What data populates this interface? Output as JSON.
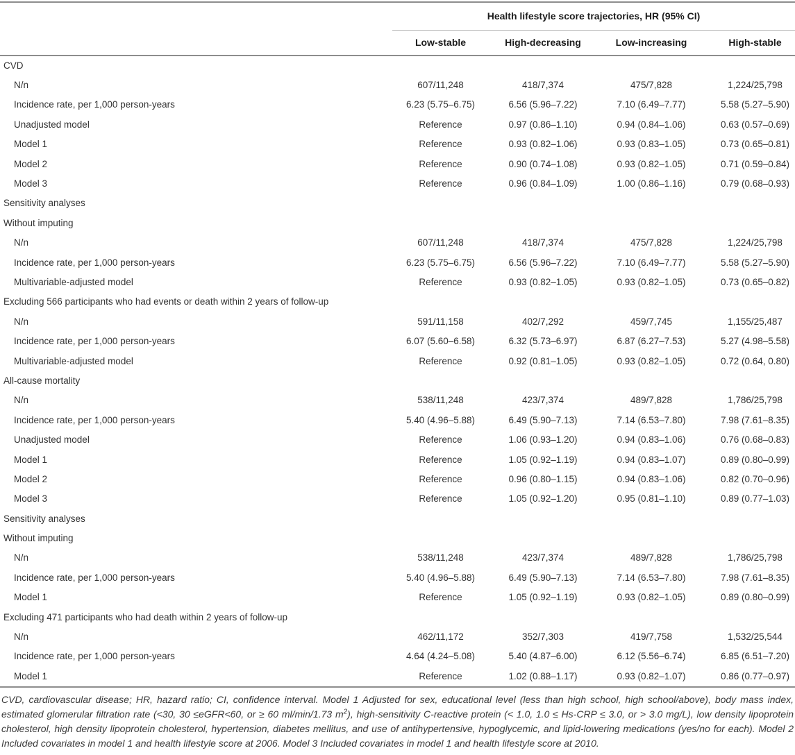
{
  "table": {
    "spanner": "Health lifestyle score trajectories, HR (95% CI)",
    "columns": [
      "Low-stable",
      "High-decreasing",
      "Low-increasing",
      "High-stable"
    ],
    "rows": [
      {
        "label": "CVD",
        "indent": false,
        "values": [
          "",
          "",
          "",
          ""
        ]
      },
      {
        "label": "N/n",
        "indent": true,
        "values": [
          "607/11,248",
          "418/7,374",
          "475/7,828",
          "1,224/25,798"
        ]
      },
      {
        "label": "Incidence rate, per 1,000 person-years",
        "indent": true,
        "values": [
          "6.23 (5.75–6.75)",
          "6.56 (5.96–7.22)",
          "7.10 (6.49–7.77)",
          "5.58 (5.27–5.90)"
        ]
      },
      {
        "label": "Unadjusted model",
        "indent": true,
        "values": [
          "Reference",
          "0.97 (0.86–1.10)",
          "0.94 (0.84–1.06)",
          "0.63 (0.57–0.69)"
        ]
      },
      {
        "label": "Model 1",
        "indent": true,
        "values": [
          "Reference",
          "0.93 (0.82–1.06)",
          "0.93 (0.83–1.05)",
          "0.73 (0.65–0.81)"
        ]
      },
      {
        "label": "Model 2",
        "indent": true,
        "values": [
          "Reference",
          "0.90 (0.74–1.08)",
          "0.93 (0.82–1.05)",
          "0.71 (0.59–0.84)"
        ]
      },
      {
        "label": "Model 3",
        "indent": true,
        "values": [
          "Reference",
          "0.96 (0.84–1.09)",
          "1.00 (0.86–1.16)",
          "0.79 (0.68–0.93)"
        ]
      },
      {
        "label": "Sensitivity analyses",
        "indent": false,
        "values": [
          "",
          "",
          "",
          ""
        ]
      },
      {
        "label": "Without imputing",
        "indent": false,
        "values": [
          "",
          "",
          "",
          ""
        ]
      },
      {
        "label": "N/n",
        "indent": true,
        "values": [
          "607/11,248",
          "418/7,374",
          "475/7,828",
          "1,224/25,798"
        ]
      },
      {
        "label": "Incidence rate, per 1,000 person-years",
        "indent": true,
        "values": [
          "6.23 (5.75–6.75)",
          "6.56 (5.96–7.22)",
          "7.10 (6.49–7.77)",
          "5.58 (5.27–5.90)"
        ]
      },
      {
        "label": "Multivariable-adjusted model",
        "indent": true,
        "values": [
          "Reference",
          "0.93 (0.82–1.05)",
          "0.93 (0.82–1.05)",
          "0.73 (0.65–0.82)"
        ]
      },
      {
        "label": "Excluding 566 participants who had events or death within 2 years of follow-up",
        "indent": false,
        "values": [
          "",
          "",
          "",
          ""
        ]
      },
      {
        "label": "N/n",
        "indent": true,
        "values": [
          "591/11,158",
          "402/7,292",
          "459/7,745",
          "1,155/25,487"
        ]
      },
      {
        "label": "Incidence rate, per 1,000 person-years",
        "indent": true,
        "values": [
          "6.07 (5.60–6.58)",
          "6.32 (5.73–6.97)",
          "6.87 (6.27–7.53)",
          "5.27 (4.98–5.58)"
        ]
      },
      {
        "label": "Multivariable-adjusted model",
        "indent": true,
        "values": [
          "Reference",
          "0.92 (0.81–1.05)",
          "0.93 (0.82–1.05)",
          "0.72 (0.64, 0.80)"
        ]
      },
      {
        "label": "All-cause mortality",
        "indent": false,
        "values": [
          "",
          "",
          "",
          ""
        ]
      },
      {
        "label": "N/n",
        "indent": true,
        "values": [
          "538/11,248",
          "423/7,374",
          "489/7,828",
          "1,786/25,798"
        ]
      },
      {
        "label": "Incidence rate, per 1,000 person-years",
        "indent": true,
        "values": [
          "5.40 (4.96–5.88)",
          "6.49 (5.90–7.13)",
          "7.14 (6.53–7.80)",
          "7.98 (7.61–8.35)"
        ]
      },
      {
        "label": "Unadjusted model",
        "indent": true,
        "values": [
          "Reference",
          "1.06 (0.93–1.20)",
          "0.94 (0.83–1.06)",
          "0.76 (0.68–0.83)"
        ]
      },
      {
        "label": "Model 1",
        "indent": true,
        "values": [
          "Reference",
          "1.05 (0.92–1.19)",
          "0.94 (0.83–1.07)",
          "0.89 (0.80–0.99)"
        ]
      },
      {
        "label": "Model 2",
        "indent": true,
        "values": [
          "Reference",
          "0.96 (0.80–1.15)",
          "0.94 (0.83–1.06)",
          "0.82 (0.70–0.96)"
        ]
      },
      {
        "label": "Model 3",
        "indent": true,
        "values": [
          "Reference",
          "1.05 (0.92–1.20)",
          "0.95 (0.81–1.10)",
          "0.89 (0.77–1.03)"
        ]
      },
      {
        "label": "Sensitivity analyses",
        "indent": false,
        "values": [
          "",
          "",
          "",
          ""
        ]
      },
      {
        "label": "Without imputing",
        "indent": false,
        "values": [
          "",
          "",
          "",
          ""
        ]
      },
      {
        "label": "N/n",
        "indent": true,
        "values": [
          "538/11,248",
          "423/7,374",
          "489/7,828",
          "1,786/25,798"
        ]
      },
      {
        "label": "Incidence rate, per 1,000 person-years",
        "indent": true,
        "values": [
          "5.40 (4.96–5.88)",
          "6.49 (5.90–7.13)",
          "7.14 (6.53–7.80)",
          "7.98 (7.61–8.35)"
        ]
      },
      {
        "label": "Model 1",
        "indent": true,
        "values": [
          "Reference",
          "1.05 (0.92–1.19)",
          "0.93 (0.82–1.05)",
          "0.89 (0.80–0.99)"
        ]
      },
      {
        "label": "Excluding 471 participants who had death within 2 years of follow-up",
        "indent": false,
        "values": [
          "",
          "",
          "",
          ""
        ]
      },
      {
        "label": "N/n",
        "indent": true,
        "values": [
          "462/11,172",
          "352/7,303",
          "419/7,758",
          "1,532/25,544"
        ]
      },
      {
        "label": "Incidence rate, per 1,000 person-years",
        "indent": true,
        "values": [
          "4.64 (4.24–5.08)",
          "5.40 (4.87–6.00)",
          "6.12 (5.56–6.74)",
          "6.85 (6.51–7.20)"
        ]
      },
      {
        "label": "Model 1",
        "indent": true,
        "values": [
          "Reference",
          "1.02 (0.88–1.17)",
          "0.93 (0.82–1.07)",
          "0.86 (0.77–0.97)"
        ]
      }
    ]
  },
  "footnote": {
    "part1": "CVD, cardiovascular disease; HR, hazard ratio; CI, confidence interval. Model 1 Adjusted for sex, educational level (less than high school, high school/above), body mass index, estimated glomerular filtration rate (<30, 30 ≤eGFR<60, or ≥ 60 ml/min/1.73 m",
    "sup": "2",
    "part2": "), high-sensitivity C-reactive protein (< 1.0, 1.0 ≤ Hs-CRP ≤ 3.0, or > 3.0 mg/L), low density lipoprotein cholesterol, high density lipoprotein cholesterol, hypertension, diabetes mellitus, and use of antihypertensive, hypoglycemic, and lipid-lowering medications (yes/no for each). Model 2 Included covariates in model 1 and health lifestyle score at 2006. Model 3 Included covariates in model 1 and health lifestyle score at 2010."
  }
}
